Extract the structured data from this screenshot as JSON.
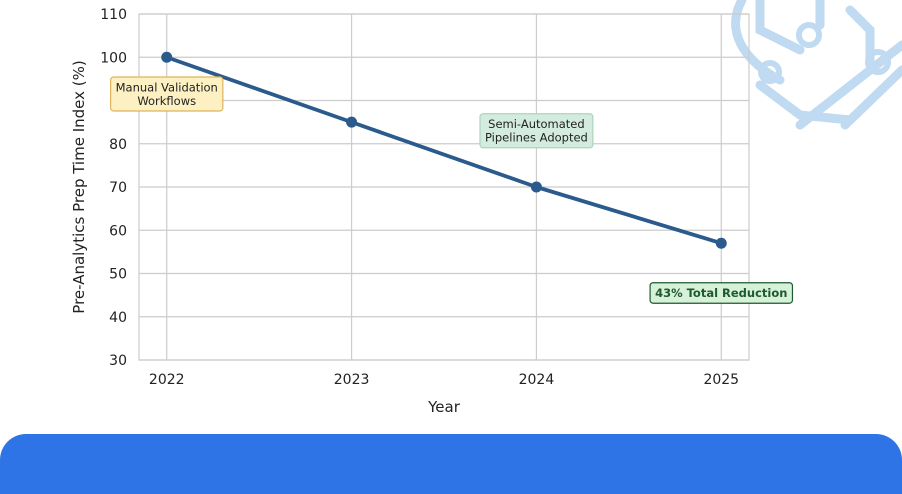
{
  "chart_data": {
    "type": "line",
    "x": [
      2022,
      2023,
      2024,
      2025
    ],
    "categories": [
      "2022",
      "2023",
      "2024",
      "2025"
    ],
    "series": [
      {
        "values": [
          100,
          85,
          70,
          57
        ]
      }
    ],
    "xlabel": "Year",
    "ylabel": "Pre-Analytics Prep Time Index (%)",
    "ylim": [
      30,
      110
    ],
    "yticks": [
      30,
      40,
      50,
      60,
      70,
      80,
      90,
      100,
      110
    ],
    "grid": true,
    "annotations": [
      {
        "id": "manual",
        "lines": [
          "Manual Validation",
          "Workflows"
        ],
        "x": 2022,
        "y": 91.5,
        "style": "yellow"
      },
      {
        "id": "semi",
        "lines": [
          "Semi-Automated",
          "Pipelines Adopted"
        ],
        "x": 2024,
        "y": 83,
        "style": "green"
      },
      {
        "id": "reduction",
        "lines": [
          "43% Total Reduction"
        ],
        "x": 2025,
        "y": 45.5,
        "style": "darkgreen"
      }
    ]
  },
  "colors": {
    "line": "#2b5a8c",
    "grid": "#cccccc",
    "footer": "#2f74e6",
    "watermark": "#b9d6f0",
    "box_yellow_fill": "#fdf0c3",
    "box_yellow_edge": "#e0b45a",
    "box_green_fill": "#d4ece0",
    "box_green_edge": "#a9d5bd",
    "box_darkgreen_fill": "#d7f0da",
    "box_darkgreen_edge": "#1d5a2c",
    "box_darkgreen_text": "#1d5a2c"
  },
  "decor": {
    "watermark_icon": "circuit-icon"
  }
}
